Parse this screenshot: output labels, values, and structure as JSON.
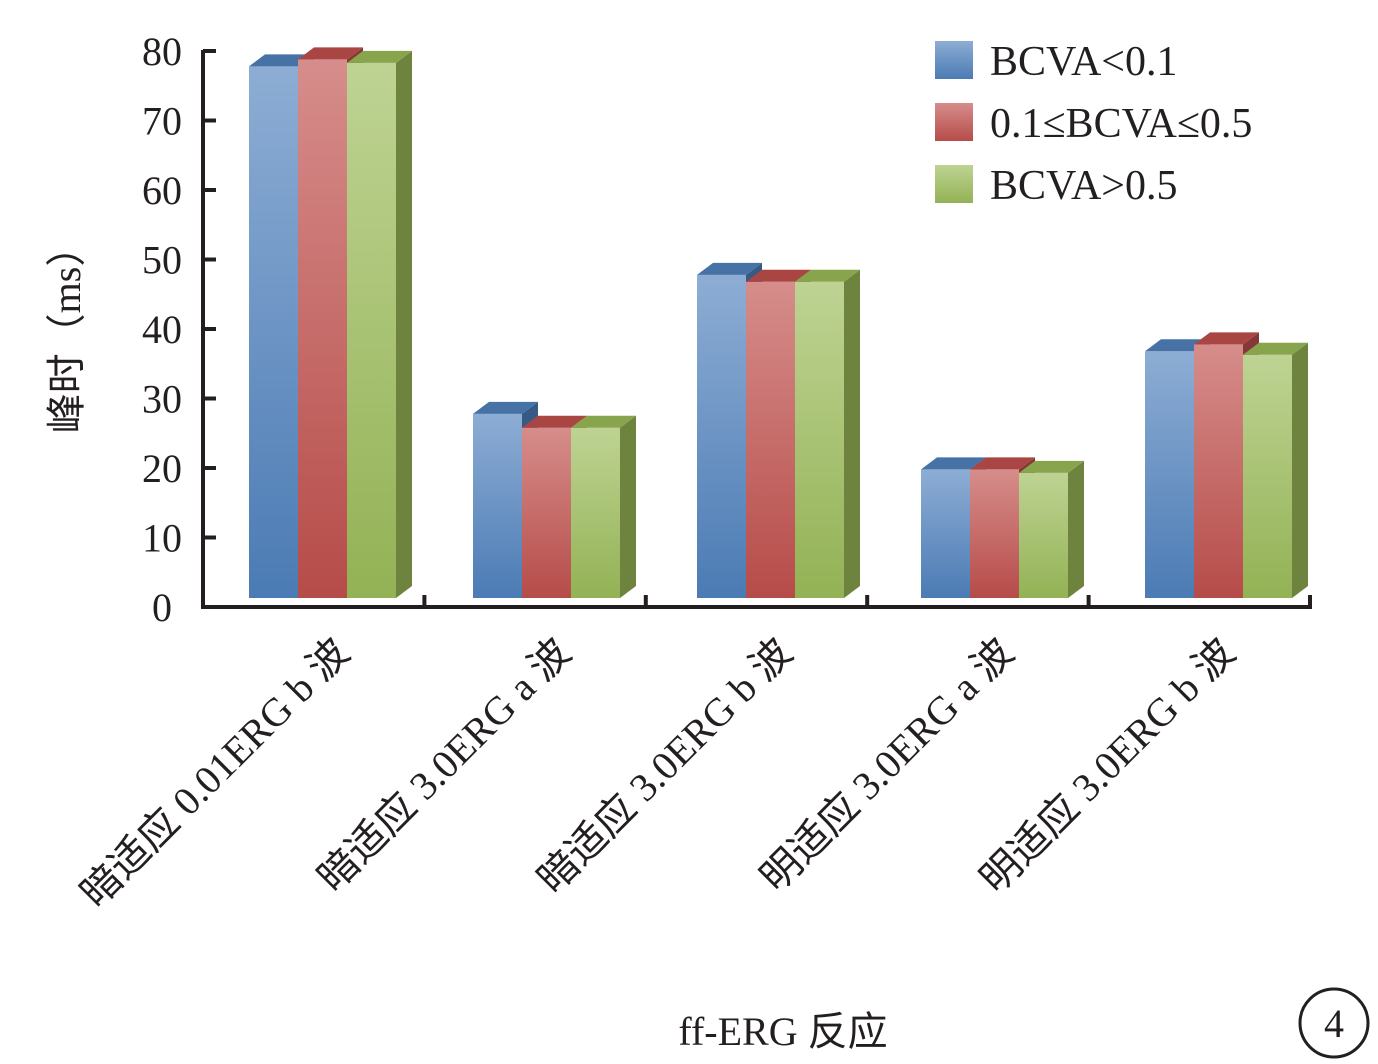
{
  "chart_data": {
    "type": "bar",
    "style": "3d-clustered-column",
    "categories": [
      "暗适应 0.01ERG b 波",
      "暗适应 3.0ERG a 波",
      "暗适应 3.0ERG b 波",
      "明适应 3.0ERG a 波",
      "明适应 3.0ERG b 波"
    ],
    "series": [
      {
        "name": "BCVA<0.1",
        "values": [
          76.5,
          26.5,
          46.5,
          18.5,
          35.5
        ],
        "color": "#4f81bd"
      },
      {
        "name": "0.1≤BCVA≤0.5",
        "values": [
          77.5,
          24.5,
          45.5,
          18.5,
          36.5
        ],
        "color": "#c0504d"
      },
      {
        "name": "BCVA>0.5",
        "values": [
          77.0,
          24.5,
          45.5,
          18.0,
          35.0
        ],
        "color": "#9bbb59"
      }
    ],
    "xlabel": "ff-ERG 反应",
    "ylabel": "峰时（ms）",
    "ylim": [
      0,
      80
    ],
    "yticks": [
      0,
      10,
      20,
      30,
      40,
      50,
      60,
      70,
      80
    ],
    "grid": false,
    "legend_position": "top-right"
  },
  "figure_number": "4"
}
